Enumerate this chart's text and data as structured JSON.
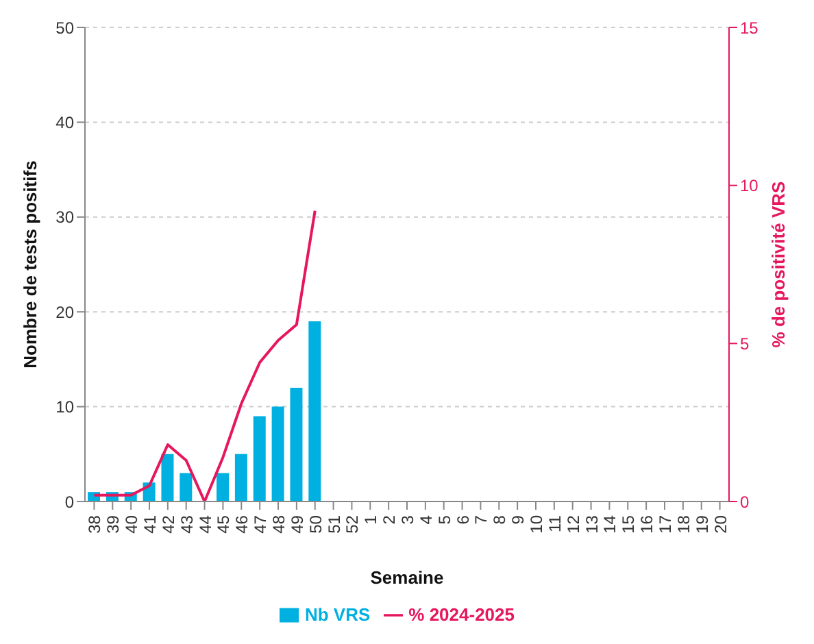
{
  "chart_data": {
    "type": "bar",
    "xlabel": "Semaine",
    "ylabel": "Nombre de tests positifs",
    "y2label": "% de positivité VRS",
    "categories": [
      "38",
      "39",
      "40",
      "41",
      "42",
      "43",
      "44",
      "45",
      "46",
      "47",
      "48",
      "49",
      "50",
      "51",
      "52",
      "1",
      "2",
      "3",
      "4",
      "5",
      "6",
      "7",
      "8",
      "9",
      "10",
      "11",
      "12",
      "13",
      "14",
      "15",
      "16",
      "17",
      "18",
      "19",
      "20"
    ],
    "series": [
      {
        "name": "Nb VRS",
        "color": "#00b0e0",
        "values": [
          1,
          1,
          1,
          2,
          5,
          3,
          0,
          3,
          5,
          9,
          10,
          12,
          19,
          null,
          null,
          null,
          null,
          null,
          null,
          null,
          null,
          null,
          null,
          null,
          null,
          null,
          null,
          null,
          null,
          null,
          null,
          null,
          null,
          null,
          null
        ]
      },
      {
        "name": "% 2024-2025",
        "type": "line",
        "axis": "y2",
        "color": "#e6175c",
        "values": [
          0.2,
          0.2,
          0.2,
          0.5,
          1.8,
          1.3,
          0,
          1.4,
          3.1,
          4.4,
          5.1,
          5.6,
          9.2,
          null,
          null,
          null,
          null,
          null,
          null,
          null,
          null,
          null,
          null,
          null,
          null,
          null,
          null,
          null,
          null,
          null,
          null,
          null,
          null,
          null,
          null
        ]
      }
    ],
    "ylim": [
      0,
      50
    ],
    "yticks": [
      0,
      10,
      20,
      30,
      40,
      50
    ],
    "y2lim": [
      0,
      15
    ],
    "y2ticks": [
      0,
      5,
      10,
      15
    ],
    "grid": "y",
    "legend": "bottom",
    "marker": "none"
  }
}
